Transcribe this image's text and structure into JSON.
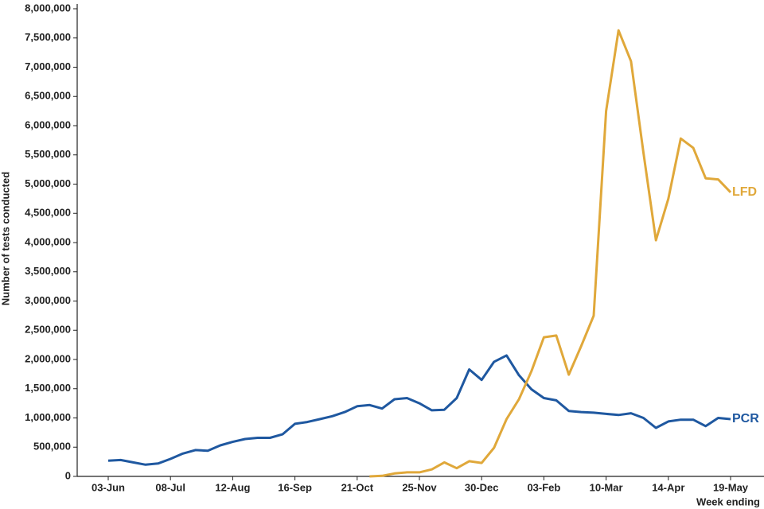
{
  "chart_data": {
    "type": "line",
    "y_label": "Number of tests conducted",
    "x_label": "Week ending",
    "categories": [
      "03-Jun",
      null,
      null,
      null,
      null,
      "08-Jul",
      null,
      null,
      null,
      null,
      "12-Aug",
      null,
      null,
      null,
      null,
      "16-Sep",
      null,
      null,
      null,
      null,
      "21-Oct",
      null,
      null,
      null,
      null,
      "25-Nov",
      null,
      null,
      null,
      null,
      "30-Dec",
      null,
      null,
      null,
      null,
      "03-Feb",
      null,
      null,
      null,
      null,
      "10-Mar",
      null,
      null,
      null,
      null,
      "14-Apr",
      null,
      null,
      null,
      null,
      "19-May"
    ],
    "series": [
      {
        "name": "PCR",
        "color": "#1f58a0",
        "values": [
          270000,
          280000,
          240000,
          200000,
          220000,
          300000,
          390000,
          450000,
          440000,
          530000,
          590000,
          640000,
          660000,
          660000,
          720000,
          900000,
          930000,
          980000,
          1030000,
          1100000,
          1200000,
          1220000,
          1160000,
          1320000,
          1340000,
          1250000,
          1130000,
          1140000,
          1340000,
          1830000,
          1650000,
          1960000,
          2070000,
          1730000,
          1490000,
          1340000,
          1300000,
          1120000,
          1100000,
          1090000,
          1070000,
          1050000,
          1080000,
          1000000,
          830000,
          940000,
          970000,
          970000,
          860000,
          1000000,
          980000
        ]
      },
      {
        "name": "LFD",
        "color": "#e0a83a",
        "values": [
          null,
          null,
          null,
          null,
          null,
          null,
          null,
          null,
          null,
          null,
          null,
          null,
          null,
          null,
          null,
          null,
          null,
          null,
          null,
          null,
          null,
          0,
          10000,
          50000,
          70000,
          70000,
          120000,
          240000,
          140000,
          260000,
          230000,
          490000,
          980000,
          1320000,
          1800000,
          2380000,
          2410000,
          1740000,
          2230000,
          2750000,
          6250000,
          7630000,
          7100000,
          5540000,
          4040000,
          4750000,
          5780000,
          5620000,
          5100000,
          5080000,
          4860000
        ]
      }
    ],
    "ylim": [
      0,
      8000000
    ],
    "yticks": [
      {
        "value": 0,
        "label": "0"
      },
      {
        "value": 500000,
        "label": "500,000"
      },
      {
        "value": 1000000,
        "label": "1,000,000"
      },
      {
        "value": 1500000,
        "label": "1,500,000"
      },
      {
        "value": 2000000,
        "label": "2,000,000"
      },
      {
        "value": 2500000,
        "label": "2,500,000"
      },
      {
        "value": 3000000,
        "label": "3,000,000"
      },
      {
        "value": 3500000,
        "label": "3,500,000"
      },
      {
        "value": 4000000,
        "label": "4,000,000"
      },
      {
        "value": 4500000,
        "label": "4,500,000"
      },
      {
        "value": 5000000,
        "label": "5,000,000"
      },
      {
        "value": 5500000,
        "label": "5,500,000"
      },
      {
        "value": 6000000,
        "label": "6,000,000"
      },
      {
        "value": 6500000,
        "label": "6,500,000"
      },
      {
        "value": 7000000,
        "label": "7,000,000"
      },
      {
        "value": 7500000,
        "label": "7,500,000"
      },
      {
        "value": 8000000,
        "label": "8,000,000"
      }
    ],
    "grid": false
  }
}
